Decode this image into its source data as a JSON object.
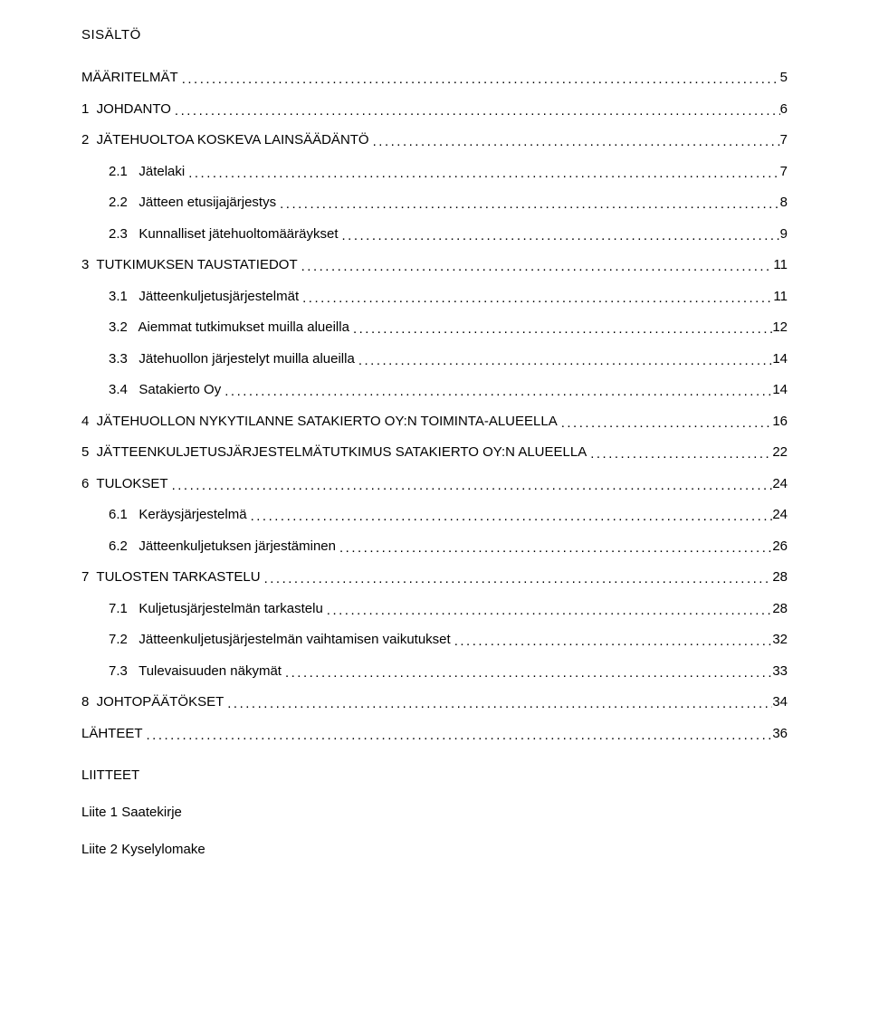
{
  "title": "SISÄLTÖ",
  "leader_char": ".",
  "text_color": "#000000",
  "background": "#ffffff",
  "base_fontsize": 15,
  "toc": [
    {
      "level": 0,
      "label": "MÄÄRITELMÄT",
      "page": "5",
      "gap_after": true
    },
    {
      "level": 0,
      "label": "1  JOHDANTO",
      "page": "6",
      "gap_after": true
    },
    {
      "level": 0,
      "label": "2  JÄTEHUOLTOA KOSKEVA LAINSÄÄDÄNTÖ",
      "page": "7"
    },
    {
      "level": 1,
      "label": "2.1   Jätelaki",
      "page": "7",
      "gap_before": true
    },
    {
      "level": 1,
      "label": "2.2   Jätteen etusijajärjestys",
      "page": "8",
      "gap_before": true
    },
    {
      "level": 1,
      "label": "2.3   Kunnalliset jätehuoltomääräykset",
      "page": "9",
      "gap_before": true,
      "gap_after": true
    },
    {
      "level": 0,
      "label": "3  TUTKIMUKSEN TAUSTATIEDOT",
      "page": "11"
    },
    {
      "level": 1,
      "label": "3.1   Jätteenkuljetusjärjestelmät",
      "page": "11",
      "gap_before": true
    },
    {
      "level": 1,
      "label": "3.2   Aiemmat tutkimukset muilla alueilla",
      "page": "12",
      "gap_before": true
    },
    {
      "level": 1,
      "label": "3.3   Jätehuollon järjestelyt muilla alueilla",
      "page": "14",
      "gap_before": true
    },
    {
      "level": 1,
      "label": "3.4   Satakierto Oy",
      "page": "14",
      "gap_before": true,
      "gap_after": true
    },
    {
      "level": 0,
      "label": "4  JÄTEHUOLLON NYKYTILANNE SATAKIERTO OY:N TOIMINTA-ALUEELLA",
      "page": "16",
      "gap_after": true
    },
    {
      "level": 0,
      "label": "5  JÄTTEENKULJETUSJÄRJESTELMÄTUTKIMUS SATAKIERTO OY:N ALUEELLA",
      "page": "22",
      "gap_after": true
    },
    {
      "level": 0,
      "label": "6  TULOKSET",
      "page": "24"
    },
    {
      "level": 1,
      "label": "6.1   Keräysjärjestelmä",
      "page": "24",
      "gap_before": true
    },
    {
      "level": 1,
      "label": "6.2   Jätteenkuljetuksen järjestäminen",
      "page": "26",
      "gap_before": true,
      "gap_after": true
    },
    {
      "level": 0,
      "label": "7  TULOSTEN TARKASTELU",
      "page": "28"
    },
    {
      "level": 1,
      "label": "7.1   Kuljetusjärjestelmän tarkastelu",
      "page": "28",
      "gap_before": true
    },
    {
      "level": 1,
      "label": "7.2   Jätteenkuljetusjärjestelmän vaihtamisen vaikutukset",
      "page": "32",
      "gap_before": true
    },
    {
      "level": 1,
      "label": "7.3   Tulevaisuuden näkymät",
      "page": "33",
      "gap_before": true,
      "gap_after": true
    },
    {
      "level": 0,
      "label": "8  JOHTOPÄÄTÖKSET",
      "page": "34",
      "gap_after": true
    },
    {
      "level": 0,
      "label": "LÄHTEET",
      "page": "36"
    }
  ],
  "appendix_heading": "LIITTEET",
  "appendix_items": [
    "Liite 1 Saatekirje",
    "Liite 2 Kyselylomake"
  ]
}
